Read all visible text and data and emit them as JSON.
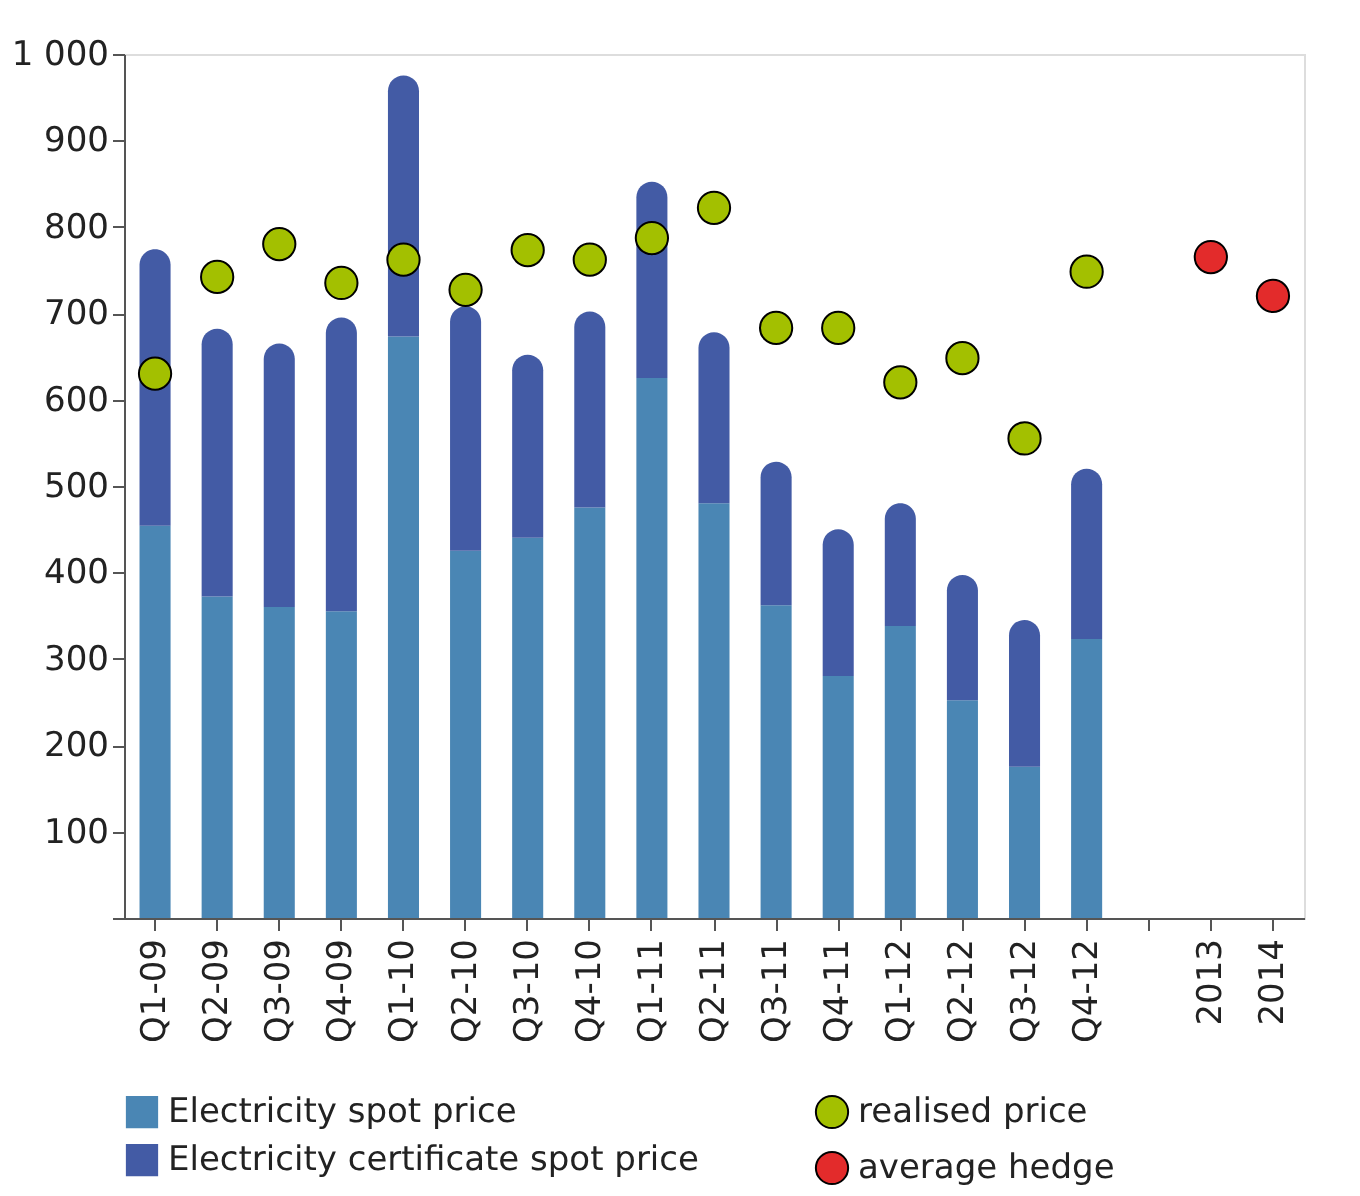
{
  "chart_data": {
    "type": "bar",
    "stacked": true,
    "categories": [
      "Q1-09",
      "Q2-09",
      "Q3-09",
      "Q4-09",
      "Q1-10",
      "Q2-10",
      "Q3-10",
      "Q4-10",
      "Q1-11",
      "Q2-11",
      "Q3-11",
      "Q4-11",
      "Q1-12",
      "Q2-12",
      "Q3-12",
      "Q4-12",
      null,
      "2013",
      "2014"
    ],
    "series": [
      {
        "name": "Electricity spot price",
        "color": "#4a86b4",
        "values": [
          454,
          372,
          360,
          355,
          673,
          425,
          440,
          475,
          625,
          480,
          362,
          280,
          338,
          252,
          175,
          323,
          null,
          null,
          null
        ]
      },
      {
        "name": "Electricity certificate spot price",
        "color": "#435ba5",
        "values": [
          320,
          310,
          305,
          340,
          302,
          283,
          212,
          227,
          227,
          198,
          166,
          170,
          142,
          145,
          170,
          197,
          null,
          null,
          null
        ]
      },
      {
        "name": "realised price",
        "type": "scatter",
        "color": "#a3c000",
        "values": [
          630,
          742,
          780,
          735,
          762,
          727,
          773,
          762,
          787,
          822,
          683,
          683,
          620,
          648,
          555,
          748,
          null,
          null,
          null
        ]
      },
      {
        "name": "average hedge",
        "type": "scatter",
        "color": "#e32b2b",
        "values": [
          null,
          null,
          null,
          null,
          null,
          null,
          null,
          null,
          null,
          null,
          null,
          null,
          null,
          null,
          null,
          null,
          null,
          765,
          720
        ]
      }
    ],
    "ylim": [
      0,
      1000
    ],
    "yticks": [
      {
        "value": 0,
        "label": null
      },
      100,
      200,
      300,
      400,
      500,
      600,
      700,
      800,
      900,
      {
        "value": 1000,
        "label": "1 000"
      }
    ],
    "grid": false,
    "legend": "bottom",
    "marker": "circle"
  }
}
